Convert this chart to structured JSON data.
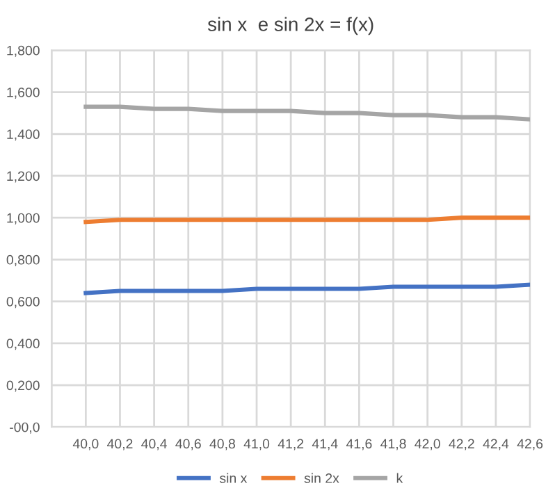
{
  "chart_data": {
    "type": "line",
    "title": "sin x  e sin 2x = f(x)",
    "x": [
      40.0,
      40.2,
      40.4,
      40.6,
      40.8,
      41.0,
      41.2,
      41.4,
      41.6,
      41.8,
      42.0,
      42.2,
      42.4,
      42.6
    ],
    "series": [
      {
        "name": "sin x",
        "color": "#4472c4",
        "values": [
          0.64,
          0.65,
          0.65,
          0.65,
          0.65,
          0.66,
          0.66,
          0.66,
          0.66,
          0.67,
          0.67,
          0.67,
          0.67,
          0.68
        ]
      },
      {
        "name": "sin 2x",
        "color": "#ed7d31",
        "values": [
          0.98,
          0.99,
          0.99,
          0.99,
          0.99,
          0.99,
          0.99,
          0.99,
          0.99,
          0.99,
          0.99,
          1.0,
          1.0,
          1.0
        ]
      },
      {
        "name": "k",
        "color": "#a5a5a5",
        "values": [
          1.53,
          1.53,
          1.52,
          1.52,
          1.51,
          1.51,
          1.51,
          1.5,
          1.5,
          1.49,
          1.49,
          1.48,
          1.48,
          1.47
        ]
      }
    ],
    "xlim": [
      39.8,
      42.6
    ],
    "xticks": [
      {
        "value": 39.8,
        "label": null
      },
      {
        "value": 40.0,
        "label": "40,0"
      },
      {
        "value": 40.2,
        "label": "40,2"
      },
      {
        "value": 40.4,
        "label": "40,4"
      },
      {
        "value": 40.6,
        "label": "40,6"
      },
      {
        "value": 40.8,
        "label": "40,8"
      },
      {
        "value": 41.0,
        "label": "41,0"
      },
      {
        "value": 41.2,
        "label": "41,2"
      },
      {
        "value": 41.4,
        "label": "41,4"
      },
      {
        "value": 41.6,
        "label": "41,6"
      },
      {
        "value": 41.8,
        "label": "41,8"
      },
      {
        "value": 42.0,
        "label": "42,0"
      },
      {
        "value": 42.2,
        "label": "42,2"
      },
      {
        "value": 42.4,
        "label": "42,4"
      },
      {
        "value": 42.6,
        "label": "42,6"
      }
    ],
    "ylim": [
      0,
      1.8
    ],
    "yticks": [
      {
        "value": 0,
        "label": "-00,0"
      },
      {
        "value": 0.2,
        "label": "0,200"
      },
      {
        "value": 0.4,
        "label": "0,400"
      },
      {
        "value": 0.6,
        "label": "0,600"
      },
      {
        "value": 0.8,
        "label": "0,800"
      },
      {
        "value": 1.0,
        "label": "1,000"
      },
      {
        "value": 1.2,
        "label": "1,200"
      },
      {
        "value": 1.4,
        "label": "1,400"
      },
      {
        "value": 1.6,
        "label": "1,600"
      },
      {
        "value": 1.8,
        "label": "1,800"
      }
    ],
    "grid": true,
    "legend": "bottom",
    "marker": "none",
    "line_style": "solid"
  }
}
